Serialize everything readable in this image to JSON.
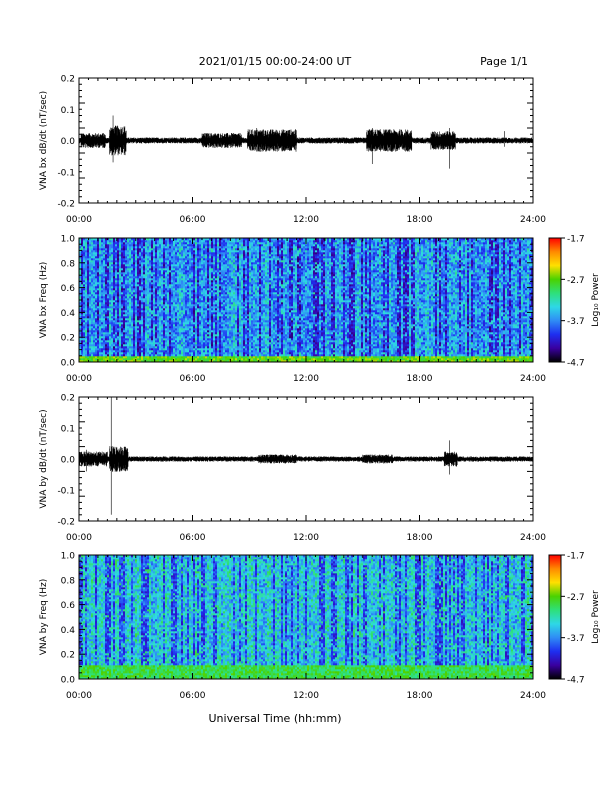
{
  "header": {
    "title": "2021/01/15  00:00-24:00 UT",
    "page": "Page 1/1"
  },
  "xaxis": {
    "label": "Universal Time (hh:mm)",
    "range_hours": [
      0,
      24
    ],
    "tick_hours": [
      0,
      6,
      12,
      18,
      24
    ],
    "tick_labels": [
      "00:00",
      "06:00",
      "12:00",
      "18:00",
      "24:00"
    ]
  },
  "colorbar": {
    "label": "Log₁₀ Power",
    "range": [
      -4.7,
      -1.7
    ],
    "tick_values": [
      -1.7,
      -2.7,
      -3.7,
      -4.7
    ],
    "tick_labels": [
      "-1.7",
      "-2.7",
      "-3.7",
      "-4.7"
    ],
    "colormap": [
      "#000000",
      "#3a00a0",
      "#1e2ef0",
      "#2f8cf5",
      "#2ed8e6",
      "#2ee07a",
      "#4ad200",
      "#ffe000",
      "#ff8a00",
      "#ff0000"
    ]
  },
  "chart_data": [
    {
      "type": "line",
      "ylabel": "VNA bx dB/dt (nT/sec)",
      "ylim": [
        -0.2,
        0.2
      ],
      "y_ticks": [
        -0.2,
        -0.1,
        0.0,
        0.1,
        0.2
      ],
      "y_tick_labels": [
        "-0.2",
        "-0.1",
        "0.0",
        "0.1",
        "0.2"
      ],
      "baseline": 0.0,
      "noise_amplitude": 0.008,
      "series_color": "#000000",
      "bursts": [
        {
          "start_hr": 0.1,
          "end_hr": 1.4,
          "amplitude": 0.02
        },
        {
          "start_hr": 1.6,
          "end_hr": 2.5,
          "amplitude": 0.04
        },
        {
          "start_hr": 6.5,
          "end_hr": 8.6,
          "amplitude": 0.02
        },
        {
          "start_hr": 8.9,
          "end_hr": 11.5,
          "amplitude": 0.03
        },
        {
          "start_hr": 15.2,
          "end_hr": 17.6,
          "amplitude": 0.03
        },
        {
          "start_hr": 18.6,
          "end_hr": 19.9,
          "amplitude": 0.025
        }
      ],
      "spikes": [
        {
          "hour": 1.8,
          "max": 0.08,
          "min": -0.07
        },
        {
          "hour": 9.4,
          "max": 0.04,
          "min": -0.035
        },
        {
          "hour": 15.5,
          "max": 0.04,
          "min": -0.075
        },
        {
          "hour": 19.6,
          "max": 0.04,
          "min": -0.09
        },
        {
          "hour": 22.5,
          "max": 0.03,
          "min": -0.02
        }
      ]
    },
    {
      "type": "heatmap",
      "ylabel": "VNA bx Freq (Hz)",
      "ylim": [
        0.0,
        1.0
      ],
      "y_ticks": [
        0.0,
        0.2,
        0.4,
        0.6,
        0.8,
        1.0
      ],
      "y_tick_labels": [
        "0.0",
        "0.2",
        "0.4",
        "0.6",
        "0.8",
        "1.0"
      ],
      "power_range": [
        -4.7,
        -1.7
      ],
      "background_power": -3.6,
      "low_freq_power": -2.7,
      "low_freq_cutoff_hz": 0.05,
      "dark_streak_power": -4.2
    },
    {
      "type": "line",
      "ylabel": "VNA by dB/dt (nT/sec)",
      "ylim": [
        -0.2,
        0.2
      ],
      "y_ticks": [
        -0.2,
        -0.1,
        0.0,
        0.1,
        0.2
      ],
      "y_tick_labels": [
        "-0.2",
        "-0.1",
        "0.0",
        "0.1",
        "0.2"
      ],
      "baseline": 0.0,
      "noise_amplitude": 0.007,
      "series_color": "#000000",
      "bursts": [
        {
          "start_hr": 0.0,
          "end_hr": 1.5,
          "amplitude": 0.02
        },
        {
          "start_hr": 1.6,
          "end_hr": 2.6,
          "amplitude": 0.035
        },
        {
          "start_hr": 9.5,
          "end_hr": 11.5,
          "amplitude": 0.012
        },
        {
          "start_hr": 15.0,
          "end_hr": 16.6,
          "amplitude": 0.012
        },
        {
          "start_hr": 19.3,
          "end_hr": 20.0,
          "amplitude": 0.02
        }
      ],
      "spikes": [
        {
          "hour": 1.7,
          "max": 0.2,
          "min": -0.18
        },
        {
          "hour": 0.4,
          "max": 0.03,
          "min": -0.04
        },
        {
          "hour": 19.6,
          "max": 0.06,
          "min": -0.05
        }
      ]
    },
    {
      "type": "heatmap",
      "ylabel": "VNA by Freq (Hz)",
      "ylim": [
        0.0,
        1.0
      ],
      "y_ticks": [
        0.0,
        0.2,
        0.4,
        0.6,
        0.8,
        1.0
      ],
      "y_tick_labels": [
        "0.0",
        "0.2",
        "0.4",
        "0.6",
        "0.8",
        "1.0"
      ],
      "power_range": [
        -4.7,
        -1.7
      ],
      "background_power": -3.4,
      "low_freq_power": -2.9,
      "low_freq_cutoff_hz": 0.12,
      "dark_streak_power": -4.0
    }
  ]
}
